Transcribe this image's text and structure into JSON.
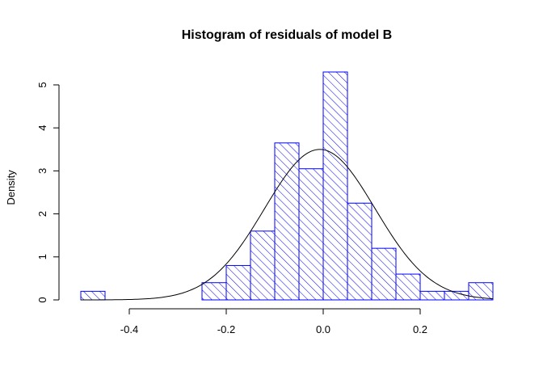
{
  "chart_data": {
    "type": "bar",
    "subtype": "histogram",
    "title": "Histogram of residuals of model B",
    "xlabel": "",
    "ylabel": "Density",
    "bins": [
      {
        "x0": -0.5,
        "x1": -0.45,
        "density": 0.2
      },
      {
        "x0": -0.45,
        "x1": -0.4,
        "density": 0.0
      },
      {
        "x0": -0.4,
        "x1": -0.35,
        "density": 0.0
      },
      {
        "x0": -0.35,
        "x1": -0.3,
        "density": 0.0
      },
      {
        "x0": -0.3,
        "x1": -0.25,
        "density": 0.0
      },
      {
        "x0": -0.25,
        "x1": -0.2,
        "density": 0.4
      },
      {
        "x0": -0.2,
        "x1": -0.15,
        "density": 0.8
      },
      {
        "x0": -0.15,
        "x1": -0.1,
        "density": 1.6
      },
      {
        "x0": -0.1,
        "x1": -0.05,
        "density": 3.65
      },
      {
        "x0": -0.05,
        "x1": 0.0,
        "density": 3.05
      },
      {
        "x0": 0.0,
        "x1": 0.05,
        "density": 5.3
      },
      {
        "x0": 0.05,
        "x1": 0.1,
        "density": 2.25
      },
      {
        "x0": 0.1,
        "x1": 0.15,
        "density": 1.2
      },
      {
        "x0": 0.15,
        "x1": 0.2,
        "density": 0.6
      },
      {
        "x0": 0.2,
        "x1": 0.25,
        "density": 0.2
      },
      {
        "x0": 0.25,
        "x1": 0.3,
        "density": 0.2
      },
      {
        "x0": 0.3,
        "x1": 0.35,
        "density": 0.4
      }
    ],
    "normal_curve": {
      "mean": -0.007,
      "sd": 0.114
    },
    "x_ticks": [
      -0.4,
      -0.2,
      0.0,
      0.2
    ],
    "x_tick_labels": [
      "-0.4",
      "-0.2",
      "0.0",
      "0.2"
    ],
    "y_ticks": [
      0,
      1,
      2,
      3,
      4,
      5
    ],
    "y_tick_labels": [
      "0",
      "1",
      "2",
      "3",
      "4",
      "5"
    ],
    "xlim": [
      -0.52,
      0.36
    ],
    "ylim": [
      0,
      5.3
    ],
    "bar_color": "#0000ff",
    "hatch": "diagonal",
    "curve_color": "#000000",
    "grid": false
  }
}
